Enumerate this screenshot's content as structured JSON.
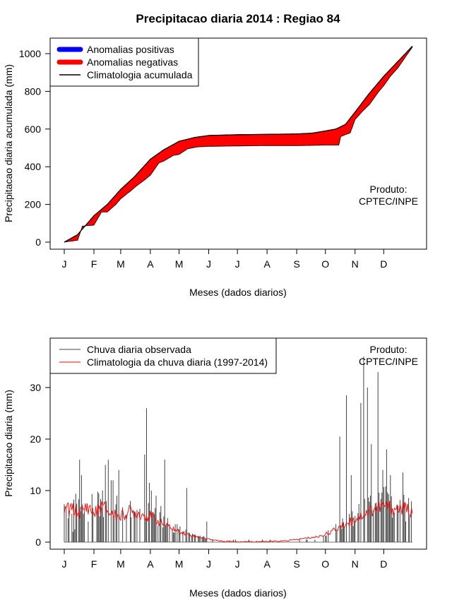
{
  "chart_data": [
    {
      "type": "area",
      "title": "Precipitacao diaria 2014 : Regiao 84",
      "xlabel": "Meses (dados diarios)",
      "ylabel": "Precipitacao diaria acumulada (mm)",
      "ylim": [
        0,
        1050
      ],
      "yticks": [
        0,
        200,
        400,
        600,
        800,
        1000
      ],
      "month_labels": [
        "J",
        "F",
        "M",
        "A",
        "M",
        "J",
        "J",
        "A",
        "S",
        "O",
        "N",
        "D"
      ],
      "month_start_days": [
        1,
        32,
        60,
        91,
        121,
        152,
        182,
        213,
        244,
        274,
        305,
        335
      ],
      "days_in_year": 365,
      "legend": [
        "Anomalias positivas",
        "Anomalias negativas",
        "Climatologia acumulada"
      ],
      "legend_colors": [
        "#0000ff",
        "#ff0000",
        "#000000"
      ],
      "annotation": "Produto:\nCPTEC/INPE",
      "series": [
        {
          "name": "Climatologia acumulada",
          "points": [
            [
              1,
              0
            ],
            [
              15,
              40
            ],
            [
              32,
              140
            ],
            [
              46,
              200
            ],
            [
              60,
              280
            ],
            [
              74,
              345
            ],
            [
              91,
              440
            ],
            [
              105,
              490
            ],
            [
              121,
              535
            ],
            [
              137,
              555
            ],
            [
              152,
              566
            ],
            [
              182,
              570
            ],
            [
              213,
              572
            ],
            [
              244,
              574
            ],
            [
              260,
              578
            ],
            [
              274,
              590
            ],
            [
              285,
              600
            ],
            [
              295,
              625
            ],
            [
              305,
              690
            ],
            [
              320,
              790
            ],
            [
              335,
              880
            ],
            [
              350,
              960
            ],
            [
              365,
              1040
            ]
          ]
        },
        {
          "name": "Observada acumulada",
          "points": [
            [
              1,
              0
            ],
            [
              15,
              10
            ],
            [
              20,
              85
            ],
            [
              32,
              90
            ],
            [
              40,
              160
            ],
            [
              46,
              160
            ],
            [
              55,
              200
            ],
            [
              60,
              230
            ],
            [
              70,
              270
            ],
            [
              77,
              300
            ],
            [
              85,
              330
            ],
            [
              91,
              355
            ],
            [
              100,
              420
            ],
            [
              105,
              430
            ],
            [
              115,
              460
            ],
            [
              121,
              465
            ],
            [
              130,
              495
            ],
            [
              140,
              505
            ],
            [
              152,
              508
            ],
            [
              182,
              510
            ],
            [
              213,
              512
            ],
            [
              244,
              512
            ],
            [
              260,
              513
            ],
            [
              274,
              515
            ],
            [
              288,
              515
            ],
            [
              290,
              560
            ],
            [
              300,
              580
            ],
            [
              305,
              650
            ],
            [
              312,
              690
            ],
            [
              320,
              730
            ],
            [
              330,
              800
            ],
            [
              335,
              830
            ],
            [
              342,
              880
            ],
            [
              350,
              925
            ],
            [
              356,
              970
            ],
            [
              365,
              1035
            ]
          ]
        }
      ]
    },
    {
      "type": "bar",
      "xlabel": "Meses (dados diarios)",
      "ylabel": "Precipitacao diaria (mm)",
      "ylim": [
        0,
        38
      ],
      "yticks": [
        0,
        10,
        20,
        30
      ],
      "month_labels": [
        "J",
        "F",
        "M",
        "A",
        "M",
        "J",
        "J",
        "A",
        "S",
        "O",
        "N",
        "D"
      ],
      "month_start_days": [
        1,
        32,
        60,
        91,
        121,
        152,
        182,
        213,
        244,
        274,
        305,
        335
      ],
      "days_in_year": 365,
      "legend": [
        "Chuva diaria observada",
        "Climatologia da chuva diaria (1997-2014)"
      ],
      "legend_colors": [
        "#444444",
        "#ff0000"
      ],
      "annotation": "Produto:\nCPTEC/INPE",
      "observed_peaks": [
        [
          10,
          2
        ],
        [
          12,
          2.5
        ],
        [
          17,
          16
        ],
        [
          19,
          13
        ],
        [
          22,
          6
        ],
        [
          26,
          4
        ],
        [
          41,
          10
        ],
        [
          44,
          15
        ],
        [
          47,
          16
        ],
        [
          50,
          12
        ],
        [
          52,
          12
        ],
        [
          56,
          9
        ],
        [
          58,
          14
        ],
        [
          70,
          8
        ],
        [
          74,
          6
        ],
        [
          85,
          17
        ],
        [
          87,
          26
        ],
        [
          90,
          11.5
        ],
        [
          92,
          10
        ],
        [
          97,
          9
        ],
        [
          102,
          7
        ],
        [
          106,
          16
        ],
        [
          129,
          10.5
        ],
        [
          150,
          4
        ],
        [
          289,
          20.5
        ],
        [
          296,
          28.5
        ],
        [
          301,
          13
        ],
        [
          311,
          27
        ],
        [
          314,
          36
        ],
        [
          318,
          30
        ],
        [
          322,
          19
        ],
        [
          329,
          33
        ],
        [
          334,
          14
        ],
        [
          338,
          18
        ],
        [
          342,
          13
        ],
        [
          355,
          13.5
        ],
        [
          358,
          4
        ]
      ],
      "climatology": [
        [
          1,
          5
        ],
        [
          3,
          7.2
        ],
        [
          6,
          6
        ],
        [
          10,
          6.5
        ],
        [
          15,
          5.5
        ],
        [
          20,
          6
        ],
        [
          25,
          7
        ],
        [
          32,
          5.5
        ],
        [
          40,
          7
        ],
        [
          50,
          5.5
        ],
        [
          60,
          5
        ],
        [
          70,
          6
        ],
        [
          80,
          5.5
        ],
        [
          91,
          5
        ],
        [
          100,
          4
        ],
        [
          110,
          3
        ],
        [
          121,
          2
        ],
        [
          130,
          1.5
        ],
        [
          140,
          1
        ],
        [
          152,
          0.6
        ],
        [
          165,
          0.2
        ],
        [
          182,
          0.1
        ],
        [
          213,
          0.1
        ],
        [
          230,
          0.2
        ],
        [
          244,
          0.5
        ],
        [
          255,
          0.8
        ],
        [
          265,
          1
        ],
        [
          274,
          1.5
        ],
        [
          285,
          2.5
        ],
        [
          295,
          3.5
        ],
        [
          305,
          4.5
        ],
        [
          315,
          5.5
        ],
        [
          325,
          6.5
        ],
        [
          335,
          7
        ],
        [
          345,
          6.5
        ],
        [
          355,
          6.5
        ],
        [
          365,
          6.2
        ]
      ]
    }
  ]
}
